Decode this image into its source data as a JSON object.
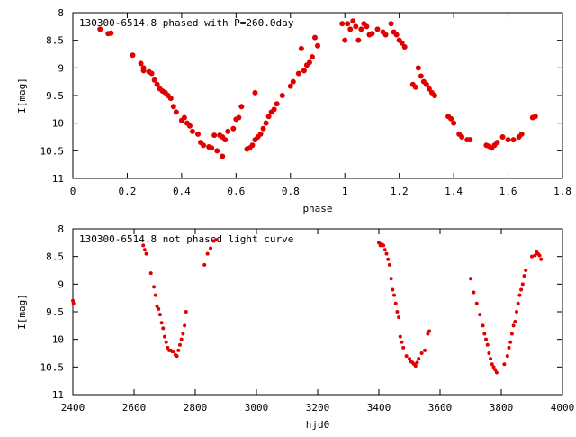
{
  "chart_data": [
    {
      "type": "scatter",
      "title": "130300-6514.8 phased with P=260.0day",
      "xlabel": "phase",
      "ylabel": "I[mag]",
      "xlim": [
        0,
        1.8
      ],
      "ylim": [
        11,
        8
      ],
      "y_inverted": true,
      "grid": false,
      "marker_color": "#e00000",
      "x_ticks": [
        "0",
        "0.2",
        "0.4",
        "0.6",
        "0.8",
        "1",
        "1.2",
        "1.4",
        "1.6",
        "1.8"
      ],
      "y_ticks": [
        "8",
        "8.5",
        "9",
        "9.5",
        "10",
        "10.5",
        "11"
      ],
      "points": [
        [
          0.1,
          8.3
        ],
        [
          0.13,
          8.38
        ],
        [
          0.14,
          8.37
        ],
        [
          0.22,
          8.77
        ],
        [
          0.25,
          8.92
        ],
        [
          0.26,
          9.0
        ],
        [
          0.26,
          9.05
        ],
        [
          0.28,
          9.07
        ],
        [
          0.29,
          9.1
        ],
        [
          0.3,
          9.22
        ],
        [
          0.31,
          9.3
        ],
        [
          0.32,
          9.38
        ],
        [
          0.33,
          9.42
        ],
        [
          0.34,
          9.45
        ],
        [
          0.35,
          9.5
        ],
        [
          0.36,
          9.55
        ],
        [
          0.37,
          9.7
        ],
        [
          0.38,
          9.8
        ],
        [
          0.4,
          9.95
        ],
        [
          0.41,
          9.9
        ],
        [
          0.42,
          10.0
        ],
        [
          0.43,
          10.05
        ],
        [
          0.44,
          10.15
        ],
        [
          0.46,
          10.2
        ],
        [
          0.47,
          10.35
        ],
        [
          0.48,
          10.4
        ],
        [
          0.5,
          10.43
        ],
        [
          0.51,
          10.45
        ],
        [
          0.52,
          10.22
        ],
        [
          0.53,
          10.5
        ],
        [
          0.54,
          10.22
        ],
        [
          0.55,
          10.25
        ],
        [
          0.55,
          10.6
        ],
        [
          0.56,
          10.3
        ],
        [
          0.57,
          10.15
        ],
        [
          0.59,
          10.1
        ],
        [
          0.6,
          9.93
        ],
        [
          0.61,
          9.9
        ],
        [
          0.62,
          9.7
        ],
        [
          0.64,
          10.47
        ],
        [
          0.65,
          10.45
        ],
        [
          0.66,
          10.4
        ],
        [
          0.67,
          10.3
        ],
        [
          0.67,
          9.45
        ],
        [
          0.68,
          10.25
        ],
        [
          0.69,
          10.2
        ],
        [
          0.7,
          10.1
        ],
        [
          0.71,
          10.0
        ],
        [
          0.72,
          9.88
        ],
        [
          0.73,
          9.8
        ],
        [
          0.74,
          9.75
        ],
        [
          0.75,
          9.65
        ],
        [
          0.77,
          9.5
        ],
        [
          0.8,
          9.33
        ],
        [
          0.81,
          9.25
        ],
        [
          0.83,
          9.1
        ],
        [
          0.84,
          8.65
        ],
        [
          0.85,
          9.05
        ],
        [
          0.86,
          8.95
        ],
        [
          0.87,
          8.9
        ],
        [
          0.88,
          8.8
        ],
        [
          0.89,
          8.45
        ],
        [
          0.9,
          8.6
        ],
        [
          0.99,
          8.2
        ],
        [
          1.0,
          8.5
        ],
        [
          1.01,
          8.2
        ],
        [
          1.02,
          8.3
        ],
        [
          1.03,
          8.15
        ],
        [
          1.04,
          8.25
        ],
        [
          1.05,
          8.5
        ],
        [
          1.06,
          8.3
        ],
        [
          1.07,
          8.2
        ],
        [
          1.08,
          8.25
        ],
        [
          1.09,
          8.4
        ],
        [
          1.1,
          8.38
        ],
        [
          1.12,
          8.3
        ],
        [
          1.14,
          8.35
        ],
        [
          1.15,
          8.4
        ],
        [
          1.17,
          8.2
        ],
        [
          1.18,
          8.35
        ],
        [
          1.19,
          8.4
        ],
        [
          1.2,
          8.5
        ],
        [
          1.21,
          8.55
        ],
        [
          1.22,
          8.62
        ],
        [
          1.25,
          9.3
        ],
        [
          1.26,
          9.35
        ],
        [
          1.27,
          9.0
        ],
        [
          1.28,
          9.15
        ],
        [
          1.29,
          9.25
        ],
        [
          1.3,
          9.3
        ],
        [
          1.31,
          9.38
        ],
        [
          1.32,
          9.45
        ],
        [
          1.33,
          9.5
        ],
        [
          1.38,
          9.88
        ],
        [
          1.39,
          9.92
        ],
        [
          1.4,
          10.0
        ],
        [
          1.42,
          10.2
        ],
        [
          1.43,
          10.25
        ],
        [
          1.45,
          10.3
        ],
        [
          1.46,
          10.3
        ],
        [
          1.52,
          10.4
        ],
        [
          1.53,
          10.42
        ],
        [
          1.54,
          10.45
        ],
        [
          1.55,
          10.4
        ],
        [
          1.56,
          10.35
        ],
        [
          1.58,
          10.25
        ],
        [
          1.6,
          10.3
        ],
        [
          1.62,
          10.3
        ],
        [
          1.64,
          10.25
        ],
        [
          1.65,
          10.2
        ],
        [
          1.69,
          9.9
        ],
        [
          1.7,
          9.88
        ]
      ]
    },
    {
      "type": "scatter",
      "title": "130300-6514.8 not phased light curve",
      "xlabel": "hjd0",
      "ylabel": "I[mag]",
      "xlim": [
        2400,
        4000
      ],
      "ylim": [
        11,
        8
      ],
      "y_inverted": true,
      "grid": false,
      "marker_color": "#e00000",
      "x_ticks": [
        "2400",
        "2600",
        "2800",
        "3000",
        "3200",
        "3400",
        "3600",
        "3800",
        "4000"
      ],
      "y_ticks": [
        "8",
        "8.5",
        "9",
        "9.5",
        "10",
        "10.5",
        "11"
      ],
      "points": [
        [
          2400,
          9.3
        ],
        [
          2402,
          9.35
        ],
        [
          2630,
          8.3
        ],
        [
          2635,
          8.38
        ],
        [
          2640,
          8.45
        ],
        [
          2655,
          8.8
        ],
        [
          2665,
          9.05
        ],
        [
          2670,
          9.2
        ],
        [
          2675,
          9.4
        ],
        [
          2680,
          9.45
        ],
        [
          2685,
          9.55
        ],
        [
          2690,
          9.7
        ],
        [
          2695,
          9.8
        ],
        [
          2700,
          9.95
        ],
        [
          2705,
          10.05
        ],
        [
          2710,
          10.15
        ],
        [
          2715,
          10.2
        ],
        [
          2720,
          10.2
        ],
        [
          2725,
          10.22
        ],
        [
          2730,
          10.22
        ],
        [
          2735,
          10.28
        ],
        [
          2740,
          10.3
        ],
        [
          2745,
          10.2
        ],
        [
          2750,
          10.1
        ],
        [
          2755,
          10.0
        ],
        [
          2760,
          9.9
        ],
        [
          2765,
          9.75
        ],
        [
          2770,
          9.5
        ],
        [
          2830,
          8.65
        ],
        [
          2840,
          8.45
        ],
        [
          2850,
          8.35
        ],
        [
          2860,
          8.22
        ],
        [
          2870,
          8.2
        ],
        [
          3400,
          8.25
        ],
        [
          3405,
          8.3
        ],
        [
          3410,
          8.28
        ],
        [
          3415,
          8.3
        ],
        [
          3420,
          8.38
        ],
        [
          3425,
          8.45
        ],
        [
          3430,
          8.55
        ],
        [
          3435,
          8.65
        ],
        [
          3440,
          8.9
        ],
        [
          3445,
          9.1
        ],
        [
          3450,
          9.2
        ],
        [
          3455,
          9.35
        ],
        [
          3460,
          9.5
        ],
        [
          3465,
          9.6
        ],
        [
          3470,
          9.95
        ],
        [
          3475,
          10.05
        ],
        [
          3480,
          10.15
        ],
        [
          3490,
          10.3
        ],
        [
          3500,
          10.35
        ],
        [
          3505,
          10.4
        ],
        [
          3510,
          10.42
        ],
        [
          3515,
          10.45
        ],
        [
          3520,
          10.48
        ],
        [
          3525,
          10.42
        ],
        [
          3530,
          10.35
        ],
        [
          3540,
          10.25
        ],
        [
          3550,
          10.2
        ],
        [
          3560,
          9.9
        ],
        [
          3565,
          9.85
        ],
        [
          3700,
          8.9
        ],
        [
          3710,
          9.15
        ],
        [
          3720,
          9.35
        ],
        [
          3730,
          9.55
        ],
        [
          3740,
          9.75
        ],
        [
          3745,
          9.9
        ],
        [
          3750,
          10.0
        ],
        [
          3755,
          10.1
        ],
        [
          3760,
          10.25
        ],
        [
          3765,
          10.35
        ],
        [
          3770,
          10.45
        ],
        [
          3775,
          10.5
        ],
        [
          3780,
          10.55
        ],
        [
          3785,
          10.6
        ],
        [
          3810,
          10.45
        ],
        [
          3820,
          10.3
        ],
        [
          3825,
          10.15
        ],
        [
          3830,
          10.05
        ],
        [
          3835,
          9.9
        ],
        [
          3840,
          9.75
        ],
        [
          3845,
          9.68
        ],
        [
          3850,
          9.5
        ],
        [
          3855,
          9.35
        ],
        [
          3860,
          9.2
        ],
        [
          3865,
          9.1
        ],
        [
          3870,
          9.0
        ],
        [
          3875,
          8.85
        ],
        [
          3880,
          8.75
        ],
        [
          3900,
          8.5
        ],
        [
          3910,
          8.48
        ],
        [
          3915,
          8.42
        ],
        [
          3920,
          8.45
        ],
        [
          3925,
          8.48
        ],
        [
          3930,
          8.55
        ]
      ]
    }
  ]
}
